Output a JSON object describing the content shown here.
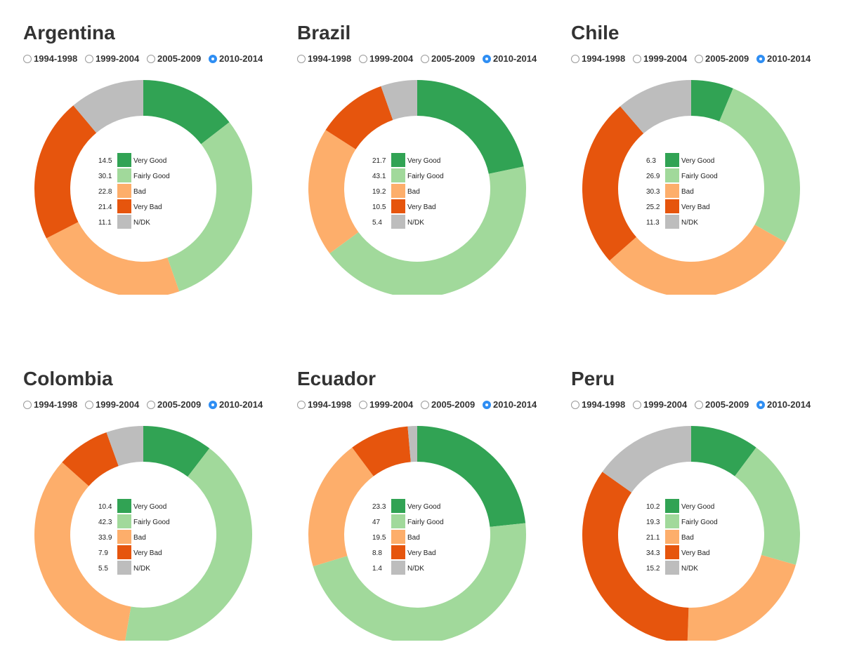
{
  "periods": [
    "1994-1998",
    "1999-2004",
    "2005-2009",
    "2010-2014"
  ],
  "selected_period": "2010-2014",
  "categories": [
    "Very Good",
    "Fairly Good",
    "Bad",
    "Very Bad",
    "N/DK"
  ],
  "colors": {
    "Very Good": "#31a354",
    "Fairly Good": "#a1d99b",
    "Bad": "#fdae6b",
    "Very Bad": "#e6550d",
    "N/DK": "#bdbdbd"
  },
  "chart_data": [
    {
      "type": "pie",
      "title": "Argentina",
      "categories": [
        "Very Good",
        "Fairly Good",
        "Bad",
        "Very Bad",
        "N/DK"
      ],
      "values": [
        14.5,
        30.1,
        22.8,
        21.4,
        11.1
      ]
    },
    {
      "type": "pie",
      "title": "Brazil",
      "categories": [
        "Very Good",
        "Fairly Good",
        "Bad",
        "Very Bad",
        "N/DK"
      ],
      "values": [
        21.7,
        43.1,
        19.2,
        10.5,
        5.4
      ]
    },
    {
      "type": "pie",
      "title": "Chile",
      "categories": [
        "Very Good",
        "Fairly Good",
        "Bad",
        "Very Bad",
        "N/DK"
      ],
      "values": [
        6.3,
        26.9,
        30.3,
        25.2,
        11.3
      ]
    },
    {
      "type": "pie",
      "title": "Colombia",
      "categories": [
        "Very Good",
        "Fairly Good",
        "Bad",
        "Very Bad",
        "N/DK"
      ],
      "values": [
        10.4,
        42.3,
        33.9,
        7.9,
        5.5
      ]
    },
    {
      "type": "pie",
      "title": "Ecuador",
      "categories": [
        "Very Good",
        "Fairly Good",
        "Bad",
        "Very Bad",
        "N/DK"
      ],
      "values": [
        23.3,
        47,
        19.5,
        8.8,
        1.4
      ]
    },
    {
      "type": "pie",
      "title": "Peru",
      "categories": [
        "Very Good",
        "Fairly Good",
        "Bad",
        "Very Bad",
        "N/DK"
      ],
      "values": [
        10.2,
        19.3,
        21.1,
        34.3,
        15.2
      ]
    }
  ]
}
